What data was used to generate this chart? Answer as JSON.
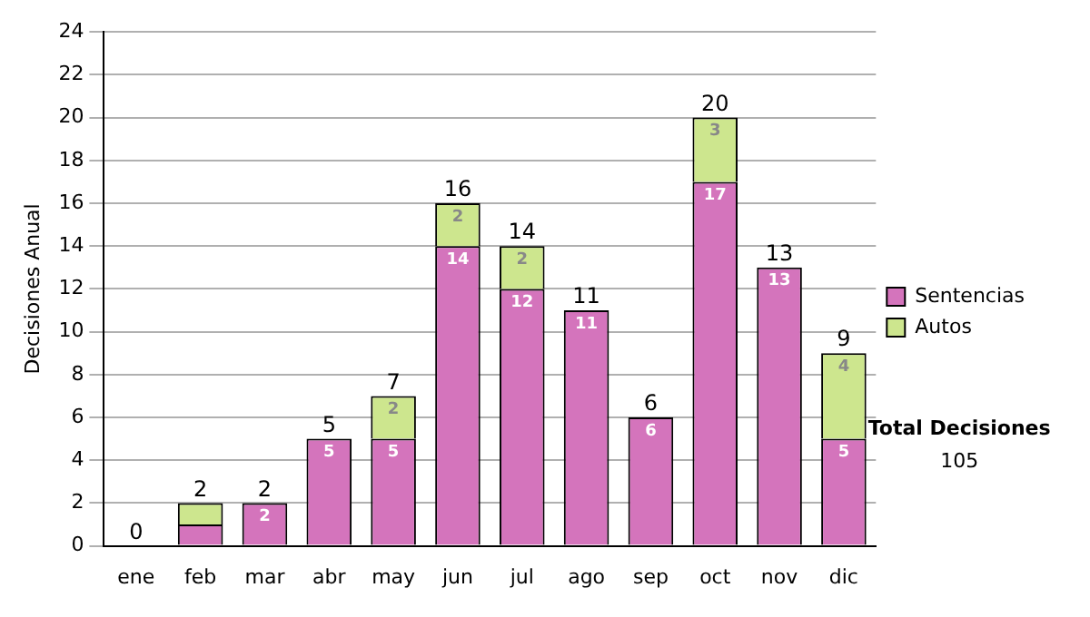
{
  "chart_data": {
    "type": "bar",
    "stacked": true,
    "ylabel": "Decisiones Anual",
    "categories": [
      "ene",
      "feb",
      "mar",
      "abr",
      "may",
      "jun",
      "jul",
      "ago",
      "sep",
      "oct",
      "nov",
      "dic"
    ],
    "series": [
      {
        "name": "Sentencias",
        "color": "#d474bc",
        "values": [
          0,
          1,
          2,
          5,
          5,
          14,
          12,
          11,
          6,
          17,
          13,
          5
        ],
        "value_labels": [
          null,
          null,
          "2",
          "5",
          "5",
          "14",
          "12",
          "11",
          "6",
          "17",
          "13",
          "5"
        ]
      },
      {
        "name": "Autos",
        "color": "#cde68e",
        "values": [
          0,
          1,
          0,
          0,
          2,
          2,
          2,
          0,
          0,
          3,
          0,
          4
        ],
        "value_labels": [
          null,
          null,
          null,
          null,
          "2",
          "2",
          "2",
          null,
          null,
          "3",
          null,
          "4"
        ]
      }
    ],
    "totals": [
      "0",
      "2",
      "2",
      "5",
      "7",
      "16",
      "14",
      "11",
      "6",
      "20",
      "13",
      "9"
    ],
    "ylim": [
      0,
      24
    ],
    "yticks": [
      0,
      2,
      4,
      6,
      8,
      10,
      12,
      14,
      16,
      18,
      20,
      22,
      24
    ],
    "grid": "y",
    "legend": "right",
    "annotations": [
      "Total Decisiones",
      "105"
    ]
  }
}
